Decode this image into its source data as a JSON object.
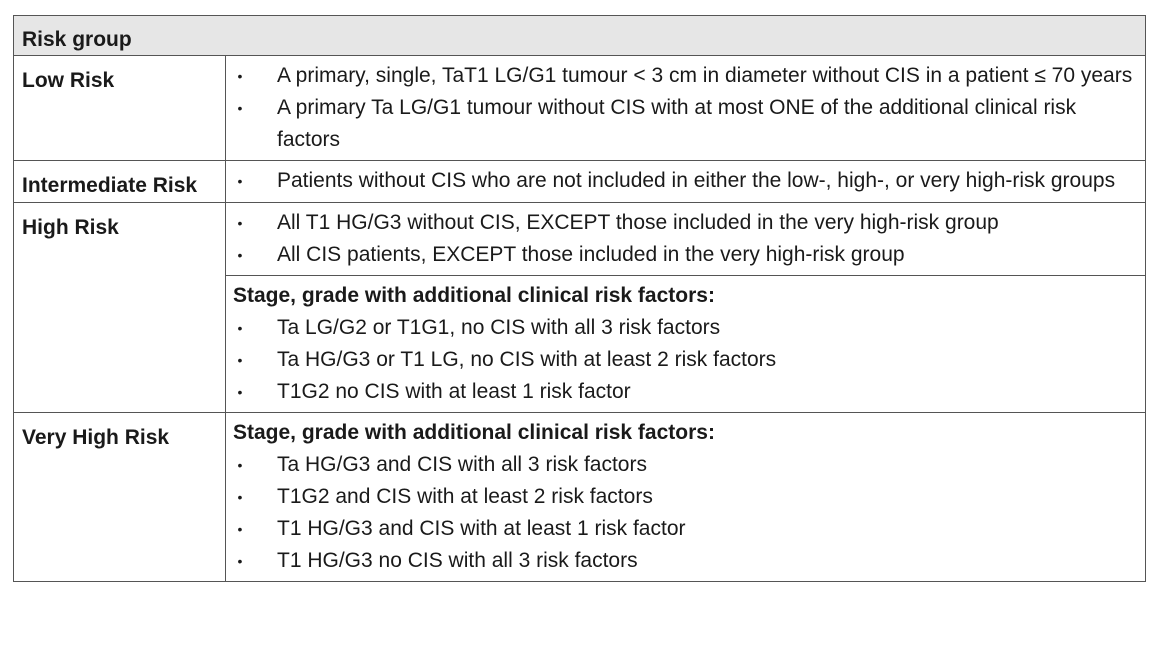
{
  "header": {
    "label": "Risk group"
  },
  "rows": [
    {
      "label": "Low Risk",
      "blocks": [
        {
          "subhead": "",
          "items": [
            "A primary, single, TaT1 LG/G1 tumour < 3 cm in diameter without CIS in a patient ≤ 70 years",
            "A primary Ta LG/G1 tumour without CIS with at most ONE of the additional clinical risk factors"
          ]
        }
      ]
    },
    {
      "label": "Intermediate Risk",
      "blocks": [
        {
          "subhead": "",
          "items": [
            "Patients without CIS who are not included in either the low-, high-, or very high-risk groups"
          ]
        }
      ]
    },
    {
      "label": "High Risk",
      "blocks": [
        {
          "subhead": "",
          "items": [
            "All T1 HG/G3 without CIS, EXCEPT those included in the very high-risk group",
            "All CIS patients, EXCEPT those included in the very high-risk group"
          ]
        },
        {
          "subhead": "Stage, grade with additional clinical risk factors:",
          "items": [
            "Ta LG/G2 or T1G1, no CIS with all 3 risk factors",
            "Ta HG/G3 or T1 LG, no CIS with at least 2 risk factors",
            "T1G2 no CIS with at least 1 risk factor"
          ]
        }
      ]
    },
    {
      "label": "Very High Risk",
      "blocks": [
        {
          "subhead": "Stage, grade with additional clinical risk factors:",
          "items": [
            "Ta HG/G3 and CIS with all 3 risk factors",
            "T1G2 and CIS with at least 2 risk factors",
            "T1 HG/G3 and CIS with at least 1 risk factor",
            "T1 HG/G3 no CIS with all 3 risk factors"
          ]
        }
      ]
    }
  ],
  "bullet_glyph": "•"
}
